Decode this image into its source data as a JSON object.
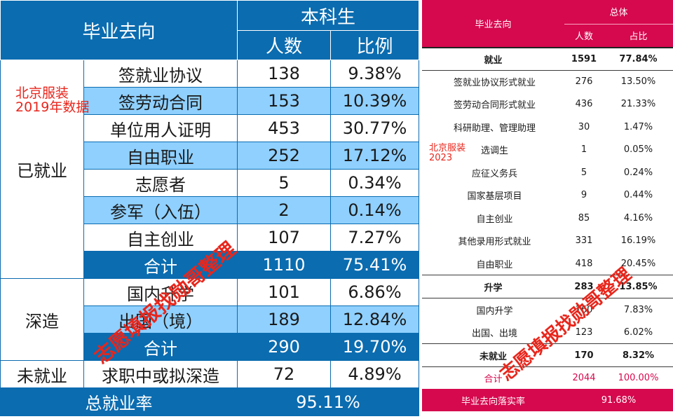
{
  "left": {
    "header": {
      "category": "毕业去向",
      "group": "本科生",
      "count_col": "人数",
      "ratio_col": "比例"
    },
    "sections": [
      {
        "name": "已就业",
        "rows": [
          {
            "label": "签就业协议",
            "count": "138",
            "ratio": "9.38%"
          },
          {
            "label": "签劳动合同",
            "count": "153",
            "ratio": "10.39%"
          },
          {
            "label": "单位用人证明",
            "count": "453",
            "ratio": "30.77%"
          },
          {
            "label": "自由职业",
            "count": "252",
            "ratio": "17.12%"
          },
          {
            "label": "志愿者",
            "count": "5",
            "ratio": "0.34%"
          },
          {
            "label": "参军（入伍）",
            "count": "2",
            "ratio": "0.14%"
          },
          {
            "label": "自主创业",
            "count": "107",
            "ratio": "7.27%"
          }
        ],
        "total": {
          "label": "合计",
          "count": "1110",
          "ratio": "75.41%"
        }
      },
      {
        "name": "深造",
        "rows": [
          {
            "label": "国内升学",
            "count": "101",
            "ratio": "6.86%"
          },
          {
            "label": "出国（境）",
            "count": "189",
            "ratio": "12.84%"
          }
        ],
        "total": {
          "label": "合计",
          "count": "290",
          "ratio": "19.70%"
        }
      },
      {
        "name": "未就业",
        "rows": [
          {
            "label": "求职中或拟深造",
            "count": "72",
            "ratio": "4.89%"
          }
        ]
      }
    ],
    "rate": {
      "label": "总就业率",
      "value": "95.11%"
    },
    "note": {
      "line1": "北京服装",
      "line2": "2019年数据"
    },
    "watermark": "志愿填报找勋哥整理"
  },
  "right": {
    "header": {
      "category": "毕业去向",
      "group": "总体",
      "count_col": "人数",
      "ratio_col": "占比"
    },
    "sections": [
      {
        "name": "就业",
        "count": "1591",
        "ratio": "77.84%",
        "rows": [
          {
            "label": "签就业协议形式就业",
            "count": "276",
            "ratio": "13.50%"
          },
          {
            "label": "签劳动合同形式就业",
            "count": "436",
            "ratio": "21.33%"
          },
          {
            "label": "科研助理、管理助理",
            "count": "30",
            "ratio": "1.47%"
          },
          {
            "label": "选调生",
            "count": "1",
            "ratio": "0.05%"
          },
          {
            "label": "应征义务兵",
            "count": "5",
            "ratio": "0.24%"
          },
          {
            "label": "国家基层项目",
            "count": "9",
            "ratio": "0.44%"
          },
          {
            "label": "自主创业",
            "count": "85",
            "ratio": "4.16%"
          },
          {
            "label": "其他录用形式就业",
            "count": "331",
            "ratio": "16.19%"
          },
          {
            "label": "自由职业",
            "count": "418",
            "ratio": "20.45%"
          }
        ]
      },
      {
        "name": "升学",
        "count": "283",
        "ratio": "13.85%",
        "rows": [
          {
            "label": "国内升学",
            "count": "160",
            "ratio": "7.83%"
          },
          {
            "label": "出国、出境",
            "count": "123",
            "ratio": "6.02%"
          }
        ]
      },
      {
        "name": "未就业",
        "count": "170",
        "ratio": "8.32%",
        "rows": []
      }
    ],
    "sum": {
      "label": "合计",
      "count": "2044",
      "ratio": "100.00%"
    },
    "rate": {
      "label": "毕业去向落实率",
      "value": "91.68%"
    },
    "note": {
      "line1": "北京服装",
      "line2": "2023"
    },
    "watermark": "志愿填报找勋哥整理"
  },
  "colors": {
    "left_accent": "#0b6cb0",
    "left_band": "#8fd0ff",
    "right_accent": "#d6084e",
    "note_red": "#e8261c"
  }
}
